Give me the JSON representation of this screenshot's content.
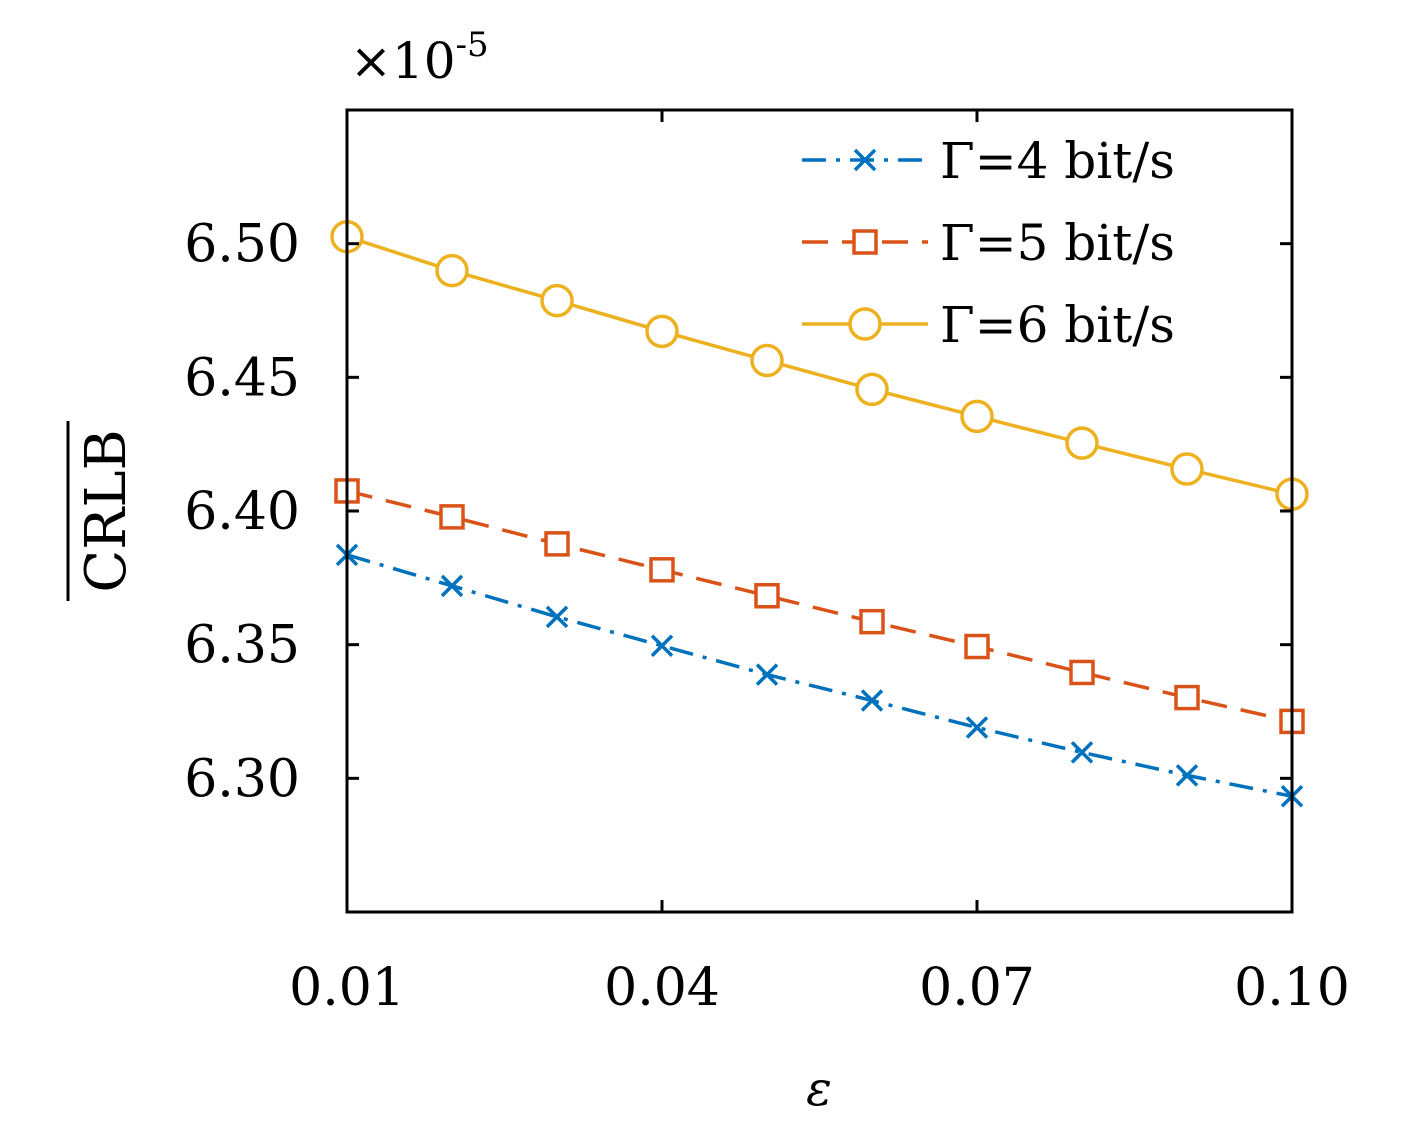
{
  "chart_data": {
    "type": "line",
    "title": "",
    "xlabel": "ε",
    "ylabel": "CRLB",
    "ylabel_overline": true,
    "y_multiplier": "×10",
    "y_multiplier_exp": "-5",
    "xlim": [
      0.01,
      0.1
    ],
    "ylim": [
      6.25,
      6.55
    ],
    "xticks": [
      0.01,
      0.04,
      0.07,
      0.1
    ],
    "xtick_labels": [
      "0.01",
      "0.04",
      "0.07",
      "0.10"
    ],
    "yticks": [
      6.3,
      6.35,
      6.4,
      6.45,
      6.5
    ],
    "ytick_labels": [
      "6.30",
      "6.35",
      "6.40",
      "6.45",
      "6.50"
    ],
    "grid": false,
    "legend_position": "top-right",
    "x": [
      0.01,
      0.02,
      0.03,
      0.04,
      0.05,
      0.06,
      0.07,
      0.08,
      0.09,
      0.1
    ],
    "series": [
      {
        "name": "Γ=4 bit/s",
        "color": "#0072BD",
        "marker": "x",
        "dash": "dashdot",
        "values": [
          6.3836,
          6.372,
          6.3604,
          6.3496,
          6.3388,
          6.3291,
          6.319,
          6.3097,
          6.3011,
          6.2933
        ]
      },
      {
        "name": "Γ=5 bit/s",
        "color": "#D95319",
        "marker": "square",
        "dash": "dashed",
        "values": [
          6.4075,
          6.3978,
          6.3877,
          6.378,
          6.3683,
          6.3586,
          6.3493,
          6.3396,
          6.3302,
          6.3213
        ]
      },
      {
        "name": "Γ=6 bit/s",
        "color": "#EDB120",
        "marker": "circle",
        "dash": "solid",
        "values": [
          6.5026,
          6.4899,
          6.4787,
          6.4672,
          6.4563,
          6.4455,
          6.4354,
          6.4254,
          6.4157,
          6.4063
        ]
      }
    ]
  }
}
